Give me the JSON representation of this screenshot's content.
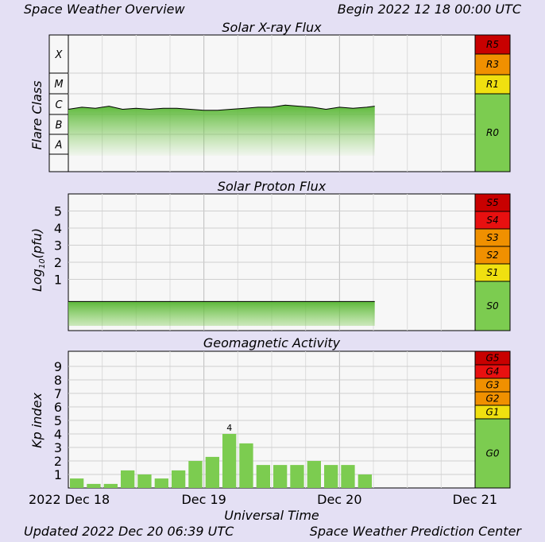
{
  "header": {
    "title": "Space Weather Overview",
    "begin": "Begin 2022 12 18 00:00 UTC"
  },
  "footer": {
    "updated": "Updated 2022 Dec 20 06:39 UTC",
    "center": "Space Weather Prediction Center"
  },
  "colors": {
    "background": "#e4e0f4",
    "plot_bg": "#f7f7f7",
    "green": "#7ccc50",
    "yellow": "#f0e010",
    "orange": "#f09000",
    "red": "#e81010",
    "dark_red": "#c80000"
  },
  "chart_data": [
    {
      "type": "area",
      "title": "Solar X-ray Flux",
      "ylabel": "Flare Class",
      "class_labels": [
        "X",
        "M",
        "C",
        "B",
        "A"
      ],
      "x_ticks": [
        "2022 Dec 18",
        "Dec 19",
        "Dec 20",
        "Dec 21"
      ],
      "x_axis_days": [
        "2022-12-18",
        "2022-12-21"
      ],
      "x_days_from_start": [
        0.0,
        0.1,
        0.2,
        0.3,
        0.4,
        0.5,
        0.6,
        0.7,
        0.8,
        0.9,
        1.0,
        1.1,
        1.2,
        1.3,
        1.4,
        1.5,
        1.6,
        1.7,
        1.8,
        1.9,
        2.0,
        2.1,
        2.2,
        2.26
      ],
      "y_class_level": [
        2.25,
        2.35,
        2.3,
        2.4,
        2.25,
        2.3,
        2.25,
        2.3,
        2.3,
        2.25,
        2.2,
        2.2,
        2.25,
        2.3,
        2.35,
        2.35,
        2.45,
        2.4,
        2.35,
        2.25,
        2.35,
        2.3,
        2.35,
        2.4
      ],
      "scale_labels": [
        "R5",
        "R3",
        "R1",
        "R0"
      ]
    },
    {
      "type": "area",
      "title": "Solar Proton Flux",
      "ylabel": "Log10(pfu)",
      "yticks": [
        "5",
        "4",
        "3",
        "2",
        "1"
      ],
      "ylim": [
        -2,
        6
      ],
      "x_days_from_start": [
        0.0,
        0.25,
        0.5,
        0.75,
        1.0,
        1.25,
        1.5,
        1.75,
        2.0,
        2.26
      ],
      "y": [
        -0.3,
        -0.3,
        -0.3,
        -0.3,
        -0.3,
        -0.3,
        -0.3,
        -0.3,
        -0.3,
        -0.3
      ],
      "scale_labels": [
        "S5",
        "S4",
        "S3",
        "S2",
        "S1",
        "S0"
      ]
    },
    {
      "type": "bar",
      "title": "Geomagnetic Activity",
      "ylabel": "Kp index",
      "xlabel": "Universal Time",
      "yticks": [
        "9",
        "8",
        "7",
        "6",
        "5",
        "4",
        "3",
        "2",
        "1"
      ],
      "ylim": [
        0,
        10
      ],
      "bar_interval_hours": 3,
      "values": [
        0.7,
        0.3,
        0.3,
        1.3,
        1.0,
        0.7,
        1.3,
        2.0,
        2.3,
        4.0,
        3.3,
        1.7,
        1.7,
        1.7,
        2.0,
        1.7,
        1.7,
        1.0
      ],
      "annotation": {
        "index": 9,
        "text": "4"
      },
      "scale_labels": [
        "G5",
        "G4",
        "G3",
        "G2",
        "G1",
        "G0"
      ]
    }
  ]
}
